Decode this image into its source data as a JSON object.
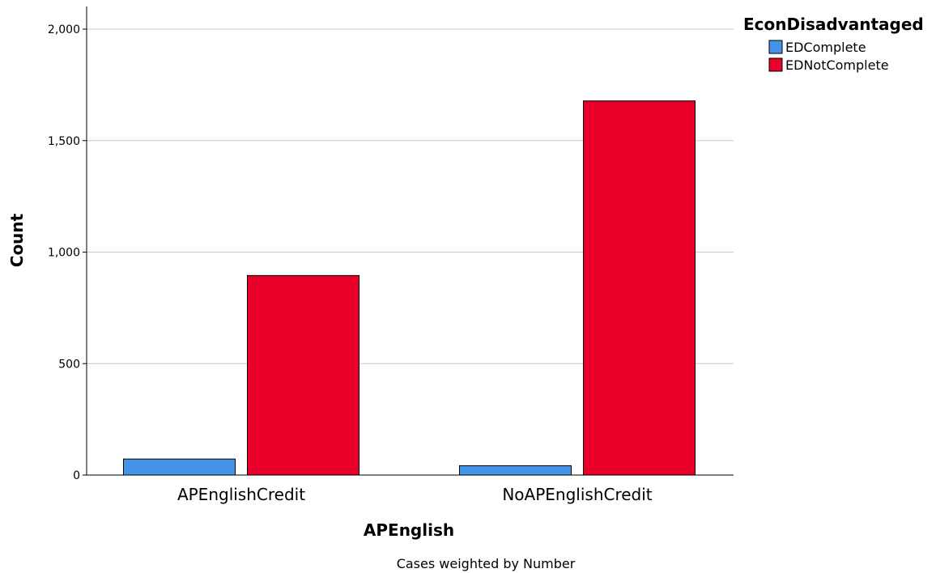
{
  "chart_data": {
    "type": "bar",
    "categories": [
      "APEnglishCredit",
      "NoAPEnglishCredit"
    ],
    "series": [
      {
        "name": "EDComplete",
        "values": [
          72,
          42
        ],
        "color": "#4393e6"
      },
      {
        "name": "EDNotComplete",
        "values": [
          895,
          1678
        ],
        "color": "#e8002b"
      }
    ],
    "xlabel": "APEnglish",
    "ylabel": "Count",
    "legend_title": "EconDisadvantaged",
    "legend_position": "top-right",
    "footnote": "Cases weighted by Number",
    "yticks": [
      0,
      500,
      1000,
      1500,
      2000
    ],
    "ytick_labels": [
      "0",
      "500",
      "1,000",
      "1,500",
      "2,000"
    ],
    "ylim": [
      0,
      2100
    ],
    "grid": true
  }
}
